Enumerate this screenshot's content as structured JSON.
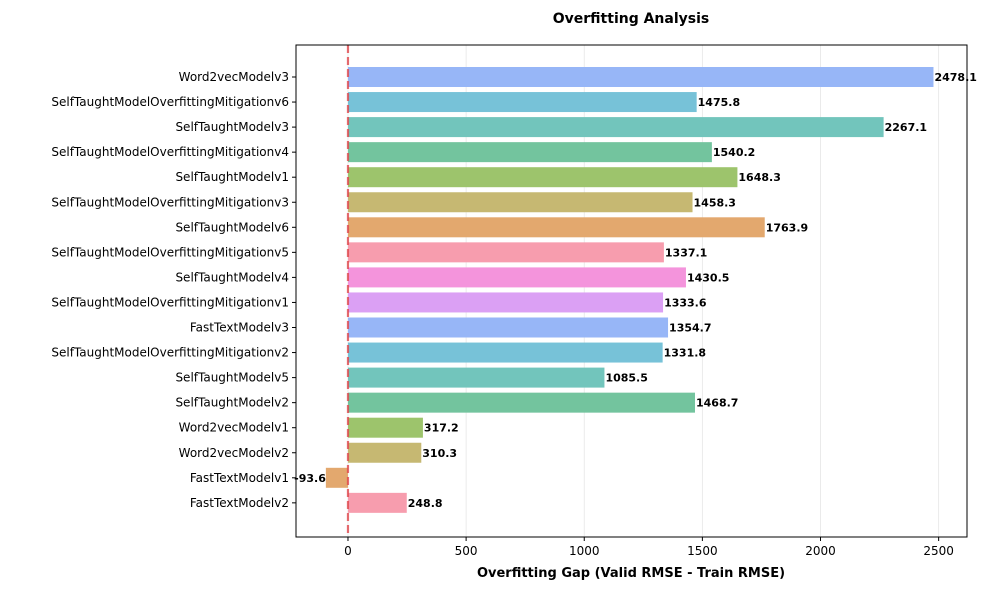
{
  "chart_data": {
    "type": "bar",
    "orientation": "horizontal",
    "title": "Overfitting Analysis",
    "xlabel": "Overfitting Gap (Valid RMSE - Train RMSE)",
    "ylabel": "",
    "xlim": [
      -220,
      2620
    ],
    "xticks": [
      0,
      500,
      1000,
      1500,
      2000,
      2500
    ],
    "grid": "x",
    "reference_line": {
      "x": 0,
      "color": "#e0474c",
      "style": "dashed"
    },
    "categories": [
      "Word2vecModelv3",
      "SelfTaughtModelOverfittingMitigationv6",
      "SelfTaughtModelv3",
      "SelfTaughtModelOverfittingMitigationv4",
      "SelfTaughtModelv1",
      "SelfTaughtModelOverfittingMitigationv3",
      "SelfTaughtModelv6",
      "SelfTaughtModelOverfittingMitigationv5",
      "SelfTaughtModelv4",
      "SelfTaughtModelOverfittingMitigationv1",
      "FastTextModelv3",
      "SelfTaughtModelOverfittingMitigationv2",
      "SelfTaughtModelv5",
      "SelfTaughtModelv2",
      "Word2vecModelv1",
      "Word2vecModelv2",
      "FastTextModelv1",
      "FastTextModelv2"
    ],
    "values": [
      2478.1,
      1475.8,
      2267.1,
      1540.2,
      1648.3,
      1458.3,
      1763.9,
      1337.1,
      1430.5,
      1333.6,
      1354.7,
      1331.8,
      1085.5,
      1468.7,
      317.2,
      310.3,
      -93.6,
      248.8
    ],
    "labels": [
      "2478.1",
      "1475.8",
      "2267.1",
      "1540.2",
      "1648.3",
      "1458.3",
      "1763.9",
      "1337.1",
      "1430.5",
      "1333.6",
      "1354.7",
      "1331.8",
      "1085.5",
      "1468.7",
      "317.2",
      "310.3",
      "-93.6",
      "248.8"
    ],
    "colors": [
      "#97b6f7",
      "#77c2d8",
      "#72c5bc",
      "#73c49e",
      "#9dc46c",
      "#c6b872",
      "#e3a86e",
      "#f79dae",
      "#f494dc",
      "#dba0f4",
      "#97b6f7",
      "#77c2d8",
      "#72c5bc",
      "#73c49e",
      "#9dc46c",
      "#c6b872",
      "#e3a86e",
      "#f79dae"
    ]
  }
}
